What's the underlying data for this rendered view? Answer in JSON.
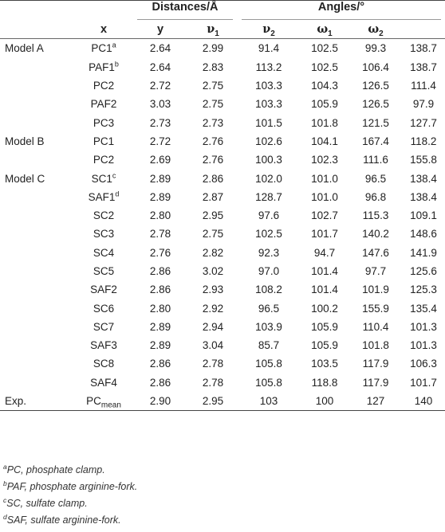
{
  "header": {
    "group_distances": "Distances/Å",
    "group_angles": "Angles/°",
    "col_x": "x",
    "col_y": "y",
    "col_nu1": "ν",
    "col_nu1_sub": "1",
    "col_nu2": "ν",
    "col_nu2_sub": "2",
    "col_omega1": "ω",
    "col_omega1_sub": "1",
    "col_omega2": "ω",
    "col_omega2_sub": "2"
  },
  "rows": [
    {
      "model": "Model A",
      "x": "PC1",
      "sup": "a",
      "sub": "",
      "v": [
        "2.64",
        "2.99",
        "91.4",
        "102.5",
        "99.3",
        "138.7"
      ]
    },
    {
      "model": "",
      "x": "PAF1",
      "sup": "b",
      "sub": "",
      "v": [
        "2.64",
        "2.83",
        "113.2",
        "102.5",
        "106.4",
        "138.7"
      ]
    },
    {
      "model": "",
      "x": "PC2",
      "sup": "",
      "sub": "",
      "v": [
        "2.72",
        "2.75",
        "103.3",
        "104.3",
        "126.5",
        "111.4"
      ]
    },
    {
      "model": "",
      "x": "PAF2",
      "sup": "",
      "sub": "",
      "v": [
        "3.03",
        "2.75",
        "103.3",
        "105.9",
        "126.5",
        "97.9"
      ]
    },
    {
      "model": "",
      "x": "PC3",
      "sup": "",
      "sub": "",
      "v": [
        "2.73",
        "2.73",
        "101.5",
        "101.8",
        "121.5",
        "127.7"
      ]
    },
    {
      "model": "Model B",
      "x": "PC1",
      "sup": "",
      "sub": "",
      "v": [
        "2.72",
        "2.76",
        "102.6",
        "104.1",
        "167.4",
        "118.2"
      ]
    },
    {
      "model": "",
      "x": "PC2",
      "sup": "",
      "sub": "",
      "v": [
        "2.69",
        "2.76",
        "100.3",
        "102.3",
        "111.6",
        "155.8"
      ]
    },
    {
      "model": "Model C",
      "x": "SC1",
      "sup": "c",
      "sub": "",
      "v": [
        "2.89",
        "2.86",
        "102.0",
        "101.0",
        "96.5",
        "138.4"
      ]
    },
    {
      "model": "",
      "x": "SAF1",
      "sup": "d",
      "sub": "",
      "v": [
        "2.89",
        "2.87",
        "128.7",
        "101.0",
        "96.8",
        "138.4"
      ]
    },
    {
      "model": "",
      "x": "SC2",
      "sup": "",
      "sub": "",
      "v": [
        "2.80",
        "2.95",
        "97.6",
        "102.7",
        "115.3",
        "109.1"
      ]
    },
    {
      "model": "",
      "x": "SC3",
      "sup": "",
      "sub": "",
      "v": [
        "2.78",
        "2.75",
        "102.5",
        "101.7",
        "140.2",
        "148.6"
      ]
    },
    {
      "model": "",
      "x": "SC4",
      "sup": "",
      "sub": "",
      "v": [
        "2.76",
        "2.82",
        "92.3",
        "94.7",
        "147.6",
        "141.9"
      ]
    },
    {
      "model": "",
      "x": "SC5",
      "sup": "",
      "sub": "",
      "v": [
        "2.86",
        "3.02",
        "97.0",
        "101.4",
        "97.7",
        "125.6"
      ]
    },
    {
      "model": "",
      "x": "SAF2",
      "sup": "",
      "sub": "",
      "v": [
        "2.86",
        "2.93",
        "108.2",
        "101.4",
        "101.9",
        "125.3"
      ]
    },
    {
      "model": "",
      "x": "SC6",
      "sup": "",
      "sub": "",
      "v": [
        "2.80",
        "2.92",
        "96.5",
        "100.2",
        "155.9",
        "135.4"
      ]
    },
    {
      "model": "",
      "x": "SC7",
      "sup": "",
      "sub": "",
      "v": [
        "2.89",
        "2.94",
        "103.9",
        "105.9",
        "110.4",
        "101.3"
      ]
    },
    {
      "model": "",
      "x": "SAF3",
      "sup": "",
      "sub": "",
      "v": [
        "2.89",
        "3.04",
        "85.7",
        "105.9",
        "101.8",
        "101.3"
      ]
    },
    {
      "model": "",
      "x": "SC8",
      "sup": "",
      "sub": "",
      "v": [
        "2.86",
        "2.78",
        "105.8",
        "103.5",
        "117.9",
        "106.3"
      ]
    },
    {
      "model": "",
      "x": "SAF4",
      "sup": "",
      "sub": "",
      "v": [
        "2.86",
        "2.78",
        "105.8",
        "118.8",
        "117.9",
        "101.7"
      ]
    },
    {
      "model": "Exp.",
      "x": "PC",
      "sup": "",
      "sub": "mean",
      "v": [
        "2.90",
        "2.95",
        "103",
        "100",
        "127",
        "140"
      ]
    }
  ],
  "footnotes": [
    {
      "mark": "a",
      "text": "PC, phosphate clamp."
    },
    {
      "mark": "b",
      "text": "PAF, phosphate arginine-fork."
    },
    {
      "mark": "c",
      "text": "SC, sulfate clamp."
    },
    {
      "mark": "d",
      "text": "SAF, sulfate arginine-fork."
    }
  ]
}
